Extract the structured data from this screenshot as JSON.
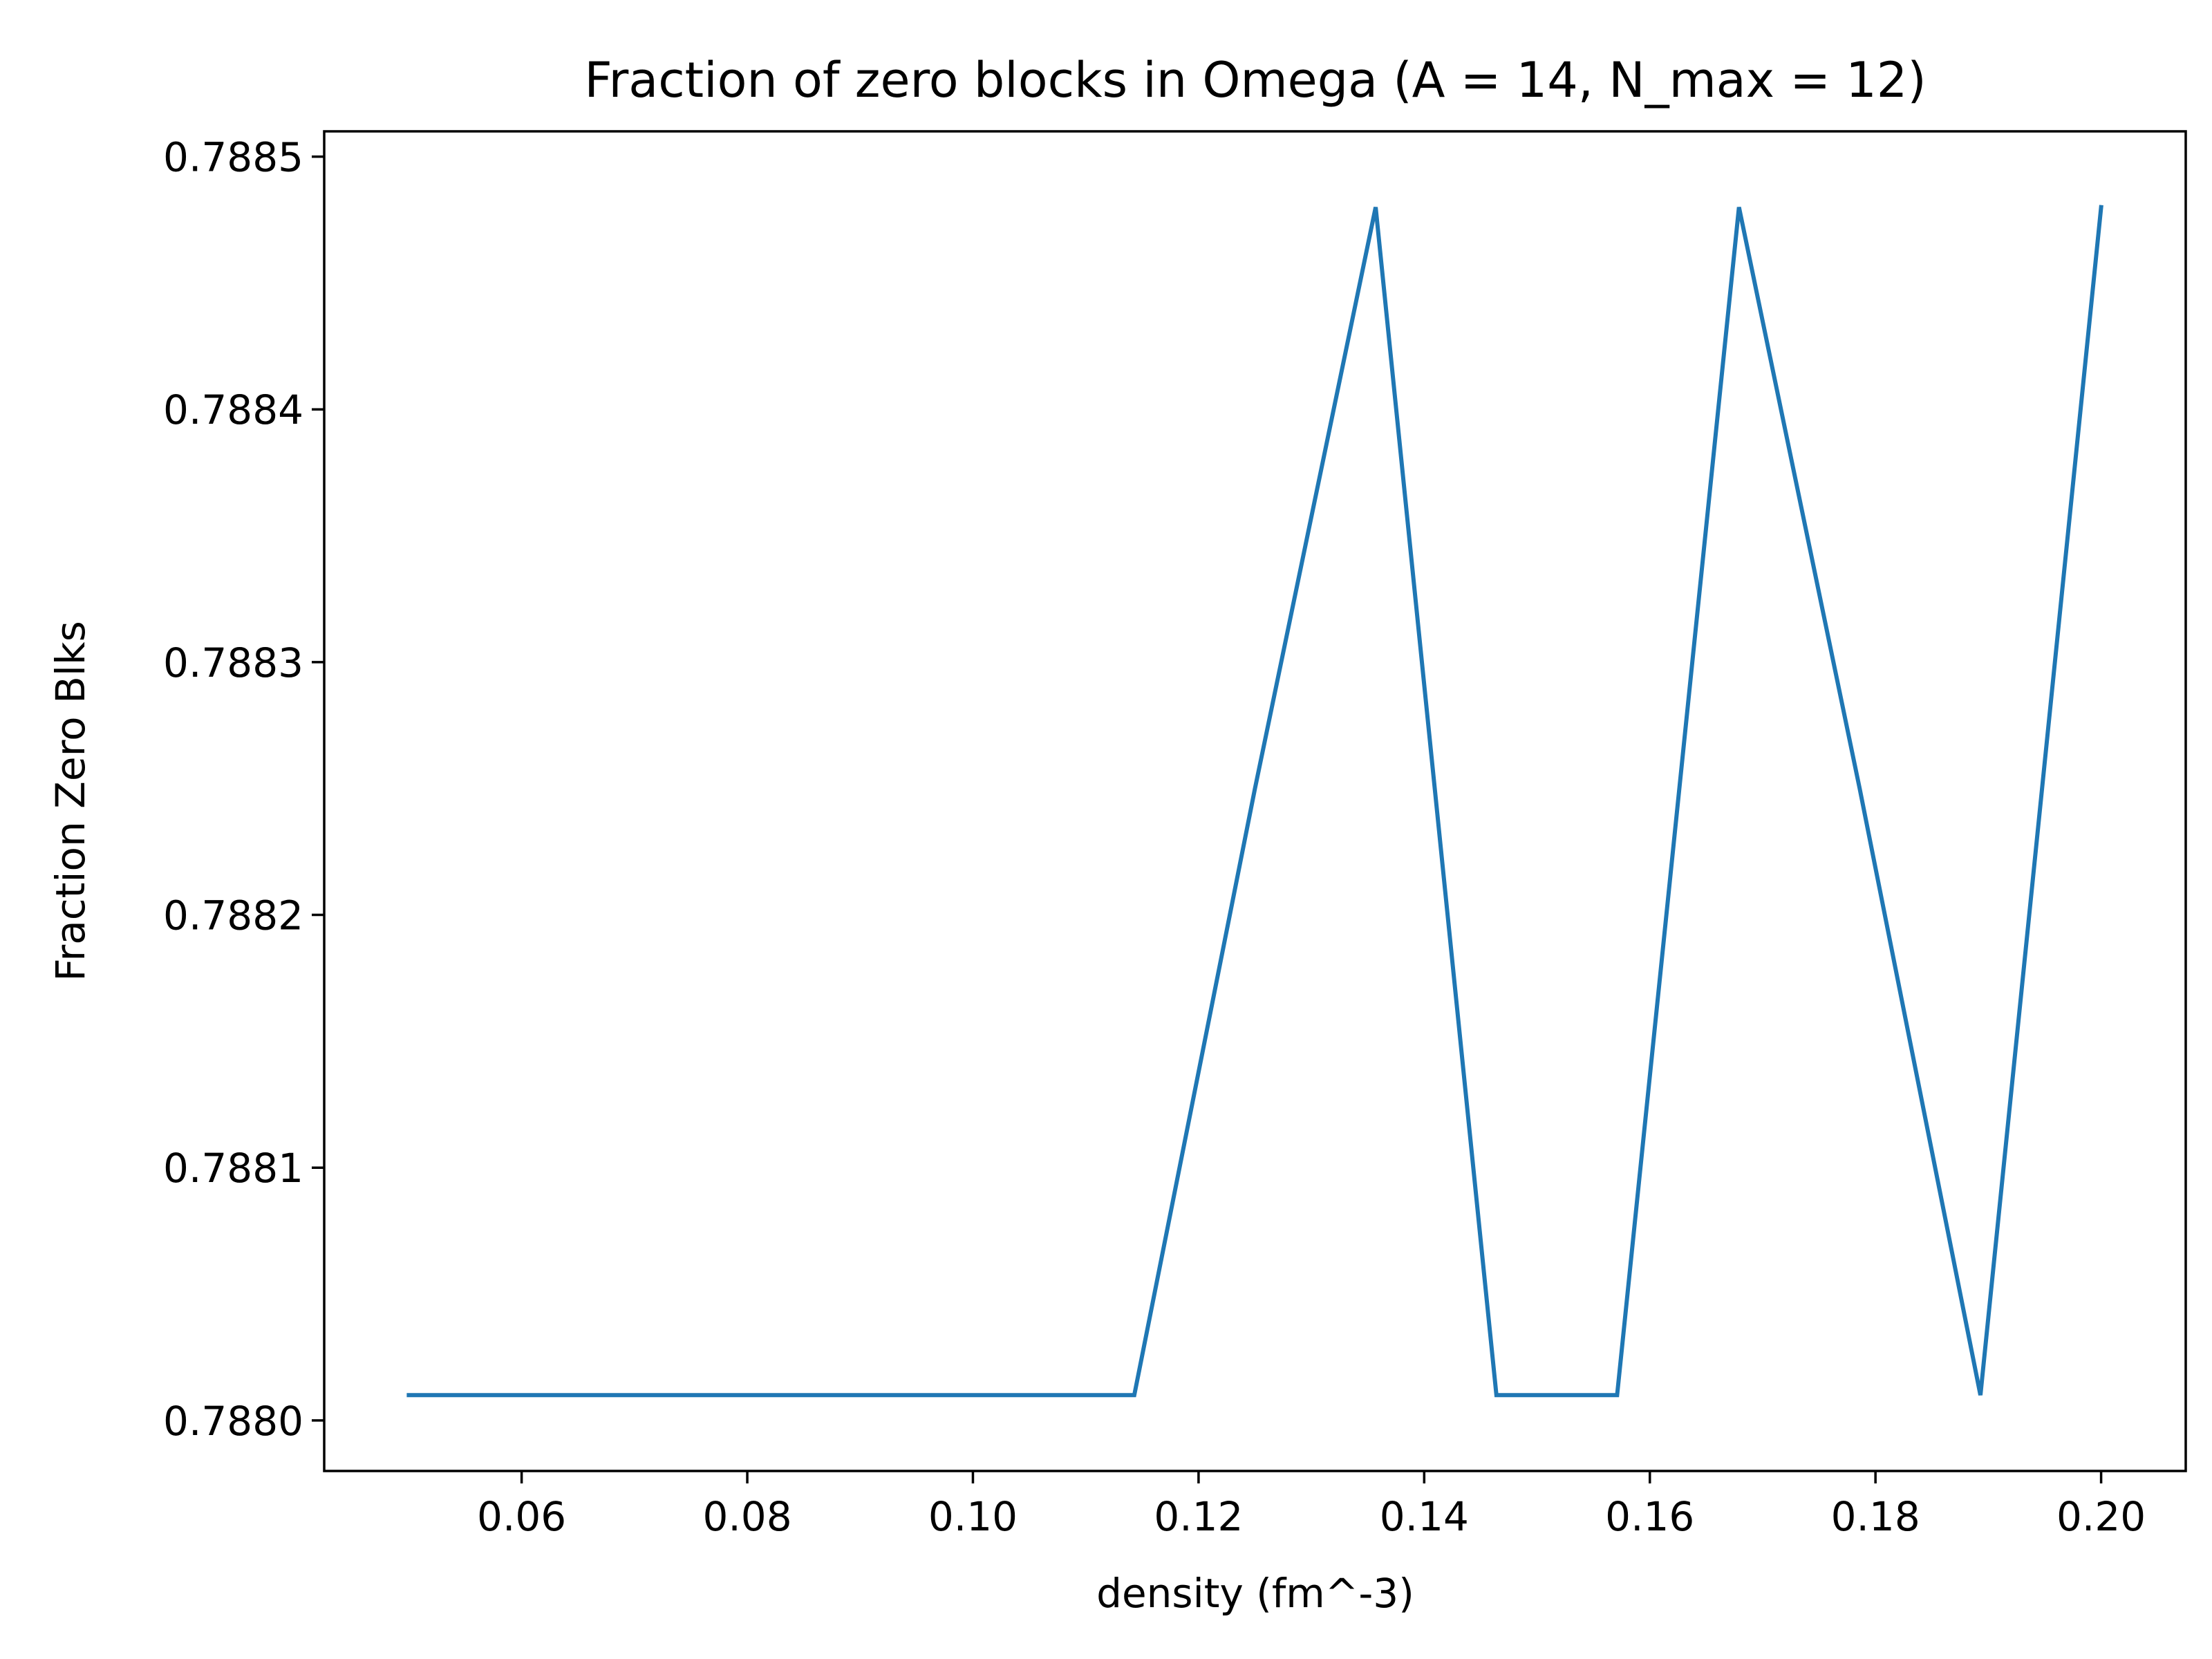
{
  "chart_data": {
    "type": "line",
    "title": "Fraction of zero blocks in Omega (A = 14, N_max = 12)",
    "xlabel": "density (fm^-3)",
    "ylabel": "Fraction Zero Blks",
    "xlim": [
      0.0425,
      0.2075
    ],
    "ylim": [
      0.78798,
      0.78851
    ],
    "xticks": [
      0.06,
      0.08,
      0.1,
      0.12,
      0.14,
      0.16,
      0.18,
      0.2
    ],
    "xtick_labels": [
      "0.06",
      "0.08",
      "0.10",
      "0.12",
      "0.14",
      "0.16",
      "0.18",
      "0.20"
    ],
    "yticks": [
      0.788,
      0.7881,
      0.7882,
      0.7883,
      0.7884,
      0.7885
    ],
    "ytick_labels": [
      "0.7880",
      "0.7881",
      "0.7882",
      "0.7883",
      "0.7884",
      "0.7885"
    ],
    "grid": false,
    "series": [
      {
        "color": "#1f77b4",
        "x": [
          0.05,
          0.0607,
          0.0714,
          0.0821,
          0.0929,
          0.1036,
          0.1143,
          0.125,
          0.1357,
          0.1464,
          0.1571,
          0.1679,
          0.1786,
          0.1893,
          0.2
        ],
        "y": [
          0.78801,
          0.78801,
          0.78801,
          0.78801,
          0.78801,
          0.78801,
          0.78801,
          0.78825,
          0.78848,
          0.78801,
          0.78801,
          0.78848,
          0.78825,
          0.78801,
          0.78848
        ]
      }
    ]
  }
}
